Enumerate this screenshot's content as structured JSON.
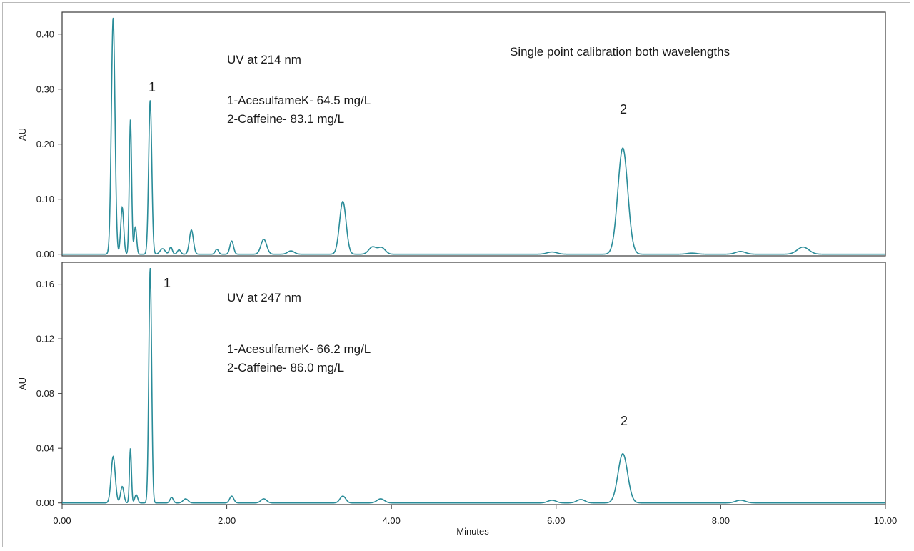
{
  "chart_data": [
    {
      "type": "line",
      "xlabel": "Minutes",
      "ylabel": "AU",
      "xlim": [
        0,
        10
      ],
      "ylim": [
        -0.003,
        0.44
      ],
      "x_ticks": [
        "0.00",
        "2.00",
        "4.00",
        "6.00",
        "8.00",
        "10.00"
      ],
      "y_ticks": [
        {
          "value": 0.0,
          "label": "0.00"
        },
        {
          "value": 0.1,
          "label": "0.10"
        },
        {
          "value": 0.2,
          "label": "0.20"
        },
        {
          "value": 0.3,
          "label": "0.30"
        },
        {
          "value": 0.4,
          "label": "0.40"
        }
      ],
      "annotations": {
        "wavelength": "UV at 214 nm",
        "line1": "1-AcesulfameK- 64.5 mg/L",
        "line2": "2-Caffeine- 83.1 mg/L",
        "calibration_note": "Single point calibration both wavelengths",
        "peak1_label": "1",
        "peak2_label": "2"
      },
      "color": "#2a8c99",
      "baseline": 0.0,
      "peaks": [
        {
          "t": 0.62,
          "h": 0.43,
          "w": 0.022
        },
        {
          "t": 0.73,
          "h": 0.085,
          "w": 0.018
        },
        {
          "t": 0.83,
          "h": 0.245,
          "w": 0.014
        },
        {
          "t": 0.89,
          "h": 0.05,
          "w": 0.015
        },
        {
          "t": 1.07,
          "h": 0.28,
          "w": 0.019
        },
        {
          "t": 1.22,
          "h": 0.01,
          "w": 0.03
        },
        {
          "t": 1.32,
          "h": 0.013,
          "w": 0.018
        },
        {
          "t": 1.42,
          "h": 0.008,
          "w": 0.02
        },
        {
          "t": 1.57,
          "h": 0.044,
          "w": 0.024
        },
        {
          "t": 1.88,
          "h": 0.009,
          "w": 0.02
        },
        {
          "t": 2.06,
          "h": 0.024,
          "w": 0.022
        },
        {
          "t": 2.45,
          "h": 0.027,
          "w": 0.035
        },
        {
          "t": 2.78,
          "h": 0.006,
          "w": 0.04
        },
        {
          "t": 3.41,
          "h": 0.096,
          "w": 0.04
        },
        {
          "t": 3.77,
          "h": 0.013,
          "w": 0.045
        },
        {
          "t": 3.88,
          "h": 0.012,
          "w": 0.045
        },
        {
          "t": 5.95,
          "h": 0.004,
          "w": 0.06
        },
        {
          "t": 6.81,
          "h": 0.193,
          "w": 0.06
        },
        {
          "t": 7.65,
          "h": 0.002,
          "w": 0.06
        },
        {
          "t": 8.24,
          "h": 0.005,
          "w": 0.06
        },
        {
          "t": 9.0,
          "h": 0.013,
          "w": 0.07
        }
      ]
    },
    {
      "type": "line",
      "xlabel": "Minutes",
      "ylabel": "AU",
      "xlim": [
        0,
        10
      ],
      "ylim": [
        -0.0012,
        0.176
      ],
      "x_ticks": [
        "0.00",
        "2.00",
        "4.00",
        "6.00",
        "8.00",
        "10.00"
      ],
      "y_ticks": [
        {
          "value": 0.0,
          "label": "0.00"
        },
        {
          "value": 0.04,
          "label": "0.04"
        },
        {
          "value": 0.08,
          "label": "0.08"
        },
        {
          "value": 0.12,
          "label": "0.12"
        },
        {
          "value": 0.16,
          "label": "0.16"
        }
      ],
      "annotations": {
        "wavelength": "UV at 247 nm",
        "line1": "1-AcesulfameK- 66.2 mg/L",
        "line2": "2-Caffeine- 86.0 mg/L",
        "peak1_label": "1",
        "peak2_label": "2"
      },
      "color": "#2a8c99",
      "baseline": 0.0,
      "peaks": [
        {
          "t": 0.62,
          "h": 0.034,
          "w": 0.025
        },
        {
          "t": 0.73,
          "h": 0.012,
          "w": 0.02
        },
        {
          "t": 0.83,
          "h": 0.04,
          "w": 0.012
        },
        {
          "t": 0.9,
          "h": 0.006,
          "w": 0.018
        },
        {
          "t": 1.07,
          "h": 0.172,
          "w": 0.017
        },
        {
          "t": 1.33,
          "h": 0.004,
          "w": 0.02
        },
        {
          "t": 1.5,
          "h": 0.003,
          "w": 0.03
        },
        {
          "t": 2.06,
          "h": 0.005,
          "w": 0.025
        },
        {
          "t": 2.45,
          "h": 0.003,
          "w": 0.035
        },
        {
          "t": 3.41,
          "h": 0.005,
          "w": 0.035
        },
        {
          "t": 3.87,
          "h": 0.003,
          "w": 0.045
        },
        {
          "t": 5.95,
          "h": 0.002,
          "w": 0.05
        },
        {
          "t": 6.3,
          "h": 0.0025,
          "w": 0.05
        },
        {
          "t": 6.81,
          "h": 0.036,
          "w": 0.058
        },
        {
          "t": 8.24,
          "h": 0.002,
          "w": 0.06
        }
      ]
    }
  ]
}
